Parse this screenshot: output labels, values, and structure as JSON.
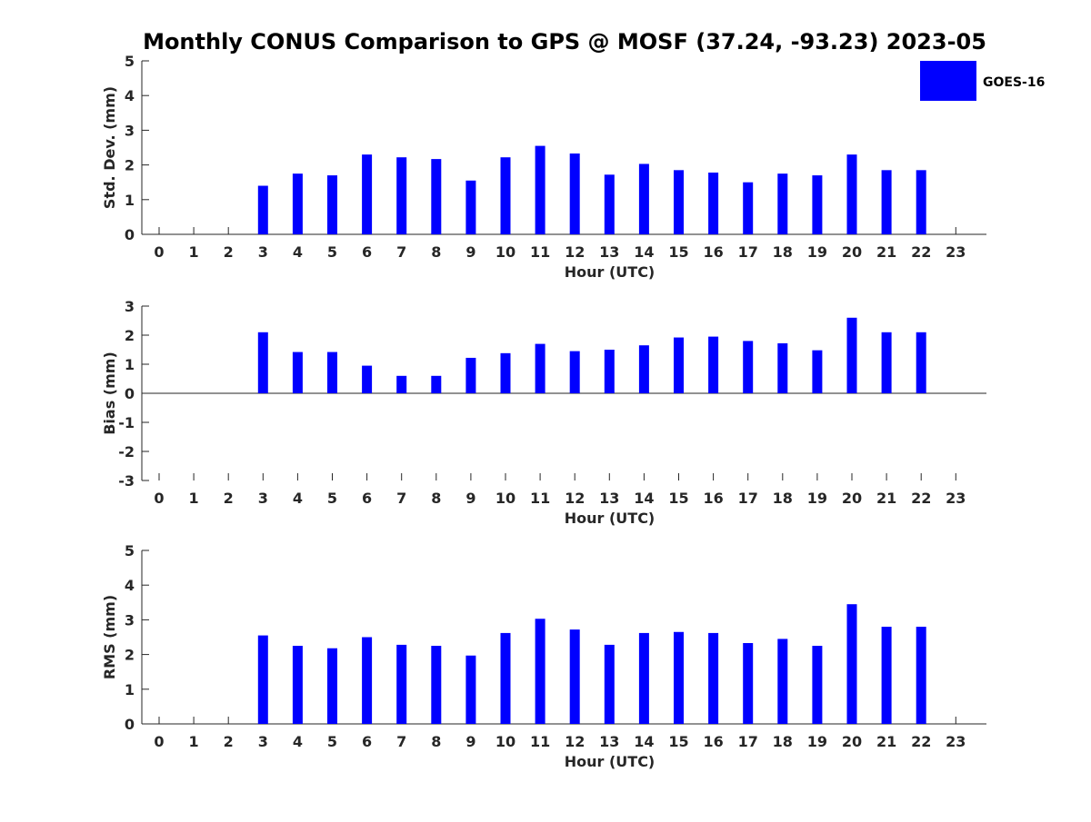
{
  "title": "Monthly CONUS Comparison to GPS @ MOSF (37.24, -93.23) 2023-05",
  "colors": {
    "bar": "#0000ff",
    "axis": "#262626"
  },
  "legend": {
    "label": "GOES-16",
    "placement": "top-right"
  },
  "chart_data": [
    {
      "type": "bar",
      "ylabel": "Std. Dev. (mm)",
      "xlabel": "Hour (UTC)",
      "ylim": [
        0,
        5
      ],
      "yticks": [
        0,
        1,
        2,
        3,
        4,
        5
      ],
      "categories": [
        "0",
        "1",
        "2",
        "3",
        "4",
        "5",
        "6",
        "7",
        "8",
        "9",
        "10",
        "11",
        "12",
        "13",
        "14",
        "15",
        "16",
        "17",
        "18",
        "19",
        "20",
        "21",
        "22",
        "23"
      ],
      "series": [
        {
          "name": "GOES-16",
          "values": [
            null,
            null,
            null,
            1.4,
            1.75,
            1.7,
            2.3,
            2.22,
            2.17,
            1.55,
            2.22,
            2.55,
            2.33,
            1.72,
            2.03,
            1.85,
            1.78,
            1.5,
            1.75,
            1.7,
            2.3,
            1.85,
            1.85,
            null
          ]
        }
      ]
    },
    {
      "type": "bar",
      "ylabel": "Bias (mm)",
      "xlabel": "Hour (UTC)",
      "ylim": [
        -3,
        3
      ],
      "yticks": [
        -3,
        -2,
        -1,
        0,
        1,
        2,
        3
      ],
      "categories": [
        "0",
        "1",
        "2",
        "3",
        "4",
        "5",
        "6",
        "7",
        "8",
        "9",
        "10",
        "11",
        "12",
        "13",
        "14",
        "15",
        "16",
        "17",
        "18",
        "19",
        "20",
        "21",
        "22",
        "23"
      ],
      "series": [
        {
          "name": "GOES-16",
          "values": [
            null,
            null,
            null,
            2.1,
            1.42,
            1.42,
            0.95,
            0.6,
            0.6,
            1.22,
            1.38,
            1.7,
            1.45,
            1.5,
            1.65,
            1.92,
            1.95,
            1.8,
            1.72,
            1.48,
            2.6,
            2.1,
            2.1,
            null
          ]
        }
      ]
    },
    {
      "type": "bar",
      "ylabel": "RMS (mm)",
      "xlabel": "Hour (UTC)",
      "ylim": [
        0,
        5
      ],
      "yticks": [
        0,
        1,
        2,
        3,
        4,
        5
      ],
      "categories": [
        "0",
        "1",
        "2",
        "3",
        "4",
        "5",
        "6",
        "7",
        "8",
        "9",
        "10",
        "11",
        "12",
        "13",
        "14",
        "15",
        "16",
        "17",
        "18",
        "19",
        "20",
        "21",
        "22",
        "23"
      ],
      "series": [
        {
          "name": "GOES-16",
          "values": [
            null,
            null,
            null,
            2.55,
            2.25,
            2.18,
            2.5,
            2.28,
            2.25,
            1.97,
            2.62,
            3.03,
            2.72,
            2.28,
            2.62,
            2.65,
            2.62,
            2.33,
            2.45,
            2.25,
            3.45,
            2.8,
            2.8,
            null
          ]
        }
      ]
    }
  ]
}
